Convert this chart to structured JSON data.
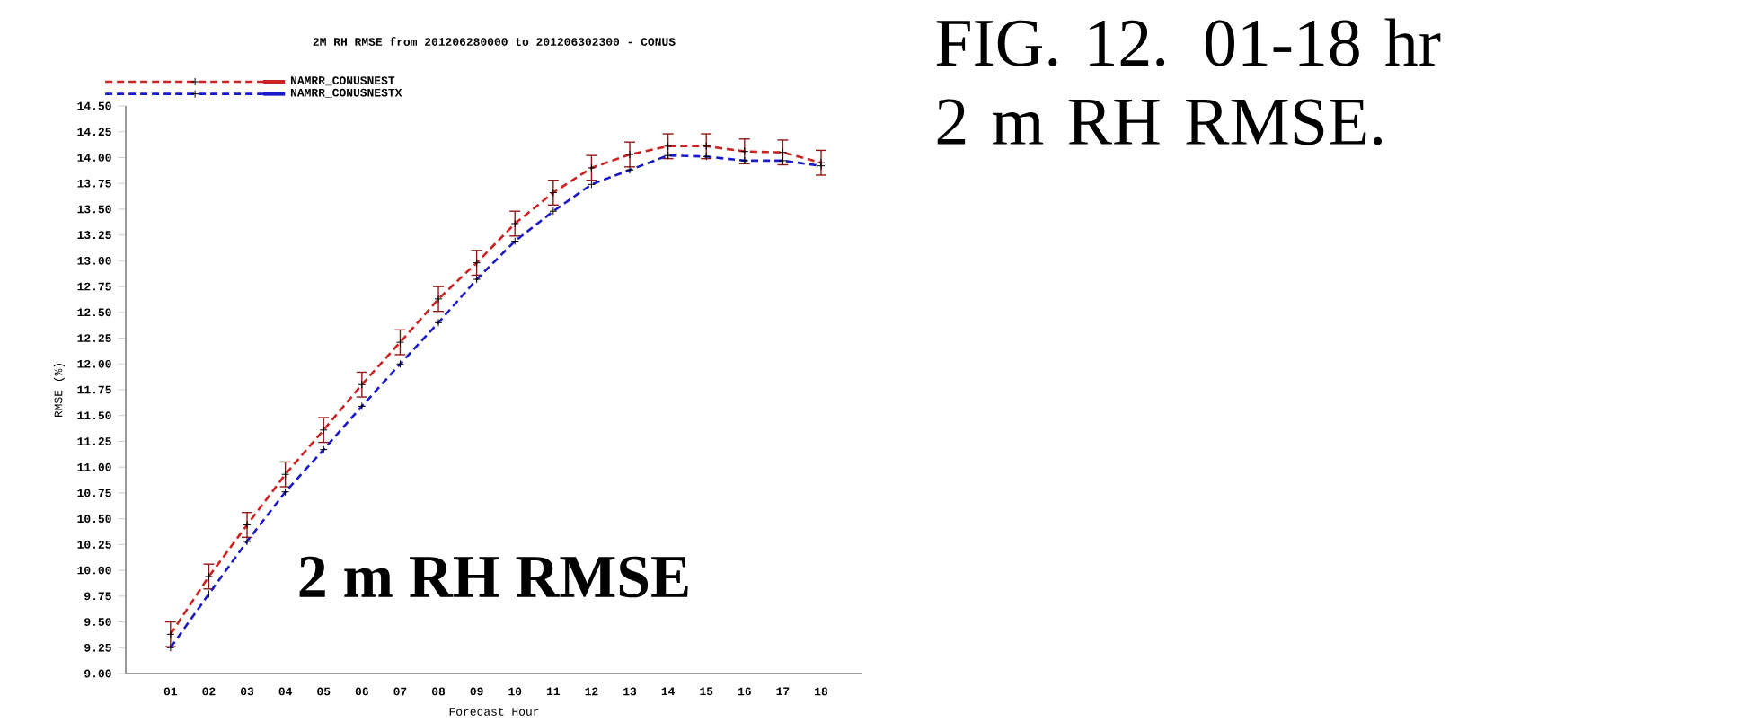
{
  "chart_data": {
    "type": "line",
    "title": "2M RH RMSE from 201206280000 to 201206302300 - CONUS",
    "xlabel": "Forecast Hour",
    "ylabel": "RMSE (%)",
    "categories": [
      "01",
      "02",
      "03",
      "04",
      "05",
      "06",
      "07",
      "08",
      "09",
      "10",
      "11",
      "12",
      "13",
      "14",
      "15",
      "16",
      "17",
      "18"
    ],
    "series": [
      {
        "name": "NAMRR_CONUSNEST",
        "color": "#cc2222",
        "values": [
          9.38,
          9.94,
          10.44,
          10.93,
          11.36,
          11.8,
          12.21,
          12.63,
          12.98,
          13.36,
          13.66,
          13.9,
          14.03,
          14.11,
          14.11,
          14.06,
          14.05,
          13.95
        ],
        "errors": [
          0.12,
          0.12,
          0.12,
          0.12,
          0.12,
          0.12,
          0.12,
          0.12,
          0.12,
          0.12,
          0.12,
          0.12,
          0.12,
          0.12,
          0.12,
          0.12,
          0.12,
          0.12
        ]
      },
      {
        "name": "NAMRR_CONUSNESTX",
        "color": "#1a1acc",
        "values": [
          9.25,
          9.77,
          10.28,
          10.76,
          11.17,
          11.59,
          12.0,
          12.4,
          12.82,
          13.19,
          13.48,
          13.74,
          13.88,
          14.02,
          14.01,
          13.97,
          13.97,
          13.92
        ]
      }
    ],
    "ylim": [
      9.0,
      14.5
    ],
    "yticks": [
      {
        "value": 9.0,
        "label": "9.00"
      },
      {
        "value": 9.25,
        "label": "9.25"
      },
      {
        "value": 9.5,
        "label": "9.50"
      },
      {
        "value": 9.75,
        "label": "9.75"
      },
      {
        "value": 10.0,
        "label": "10.00"
      },
      {
        "value": 10.25,
        "label": "10.25"
      },
      {
        "value": 10.5,
        "label": "10.50"
      },
      {
        "value": 10.75,
        "label": "10.75"
      },
      {
        "value": 11.0,
        "label": "11.00"
      },
      {
        "value": 11.25,
        "label": "11.25"
      },
      {
        "value": 11.5,
        "label": "11.50"
      },
      {
        "value": 11.75,
        "label": "11.75"
      },
      {
        "value": 12.0,
        "label": "12.00"
      },
      {
        "value": 12.25,
        "label": "12.25"
      },
      {
        "value": 12.5,
        "label": "12.50"
      },
      {
        "value": 12.75,
        "label": "12.75"
      },
      {
        "value": 13.0,
        "label": "13.00"
      },
      {
        "value": 13.25,
        "label": "13.25"
      },
      {
        "value": 13.5,
        "label": "13.50"
      },
      {
        "value": 13.75,
        "label": "13.75"
      },
      {
        "value": 14.0,
        "label": "14.00"
      },
      {
        "value": 14.25,
        "label": "14.25"
      },
      {
        "value": 14.5,
        "label": "14.50"
      }
    ],
    "legend": "top left",
    "marker": "cross",
    "line_style": "dashed",
    "grid": false,
    "annotations": [
      "2 m RH RMSE",
      "FIG. 12. 01-18 hr 2 m RH RMSE."
    ]
  }
}
